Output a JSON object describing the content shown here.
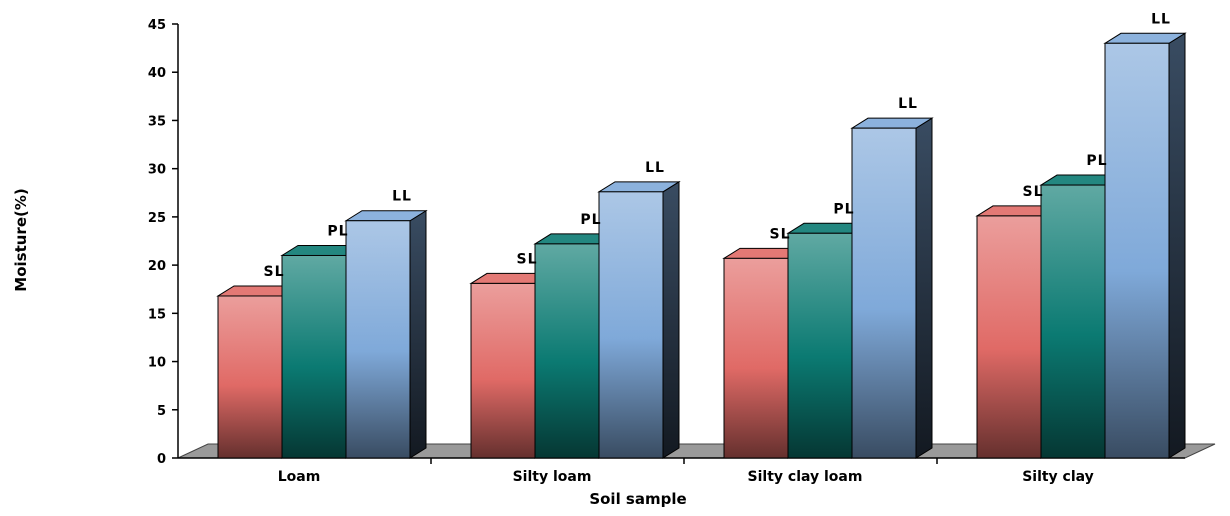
{
  "chart_data": {
    "type": "bar",
    "title": "",
    "xlabel": "Soil sample",
    "ylabel": "Moisture(%)",
    "ylim": [
      0,
      45
    ],
    "yticks": [
      0,
      5,
      10,
      15,
      20,
      25,
      30,
      35,
      40,
      45
    ],
    "categories": [
      "Loam",
      "Silty loam",
      "Silty clay loam",
      "Silty clay"
    ],
    "series": [
      {
        "label": "SL",
        "color": "#e06a66",
        "values": [
          16.8,
          18.1,
          20.7,
          25.1
        ]
      },
      {
        "label": "PL",
        "color": "#0b7a72",
        "values": [
          21.0,
          22.2,
          23.3,
          28.3
        ]
      },
      {
        "label": "LL",
        "color": "#7fa9d9",
        "values": [
          24.6,
          27.6,
          34.2,
          43.0
        ]
      }
    ],
    "grid": false,
    "legend": "none",
    "style": "3d-column"
  }
}
